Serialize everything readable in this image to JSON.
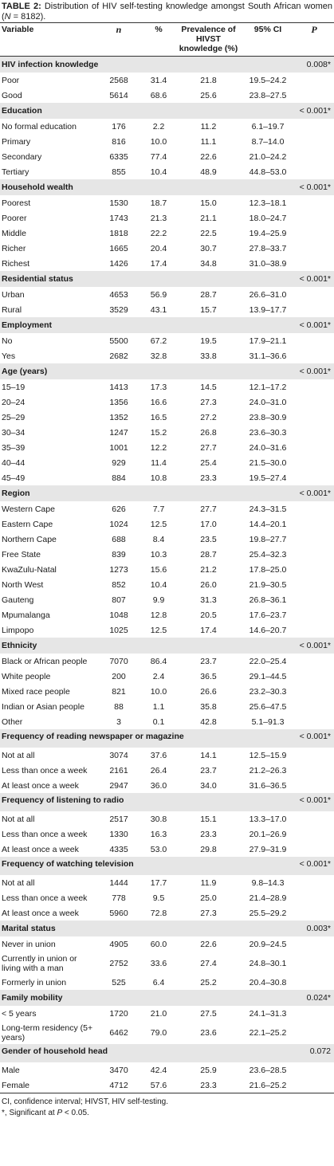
{
  "caption": {
    "label": "TABLE 2:",
    "text_before_n": "Distribution of HIV self-testing knowledge amongst South African women (",
    "n_symbol": "N",
    "text_after_n": " = 8182)."
  },
  "header": {
    "variable": "Variable",
    "n": "n",
    "percent": "%",
    "prevalence": "Prevalence of HIVST knowledge (%)",
    "ci": "95% CI",
    "p": "P"
  },
  "groups": [
    {
      "title": "HIV infection knowledge",
      "p": "0.008*",
      "rows": [
        [
          "Poor",
          "2568",
          "31.4",
          "21.8",
          "19.5–24.2"
        ],
        [
          "Good",
          "5614",
          "68.6",
          "25.6",
          "23.8–27.5"
        ]
      ]
    },
    {
      "title": "Education",
      "p": "< 0.001*",
      "rows": [
        [
          "No formal education",
          "176",
          "2.2",
          "11.2",
          "6.1–19.7"
        ],
        [
          "Primary",
          "816",
          "10.0",
          "11.1",
          "8.7–14.0"
        ],
        [
          "Secondary",
          "6335",
          "77.4",
          "22.6",
          "21.0–24.2"
        ],
        [
          "Tertiary",
          "855",
          "10.4",
          "48.9",
          "44.8–53.0"
        ]
      ]
    },
    {
      "title": "Household wealth",
      "p": "< 0.001*",
      "rows": [
        [
          "Poorest",
          "1530",
          "18.7",
          "15.0",
          "12.3–18.1"
        ],
        [
          "Poorer",
          "1743",
          "21.3",
          "21.1",
          "18.0–24.7"
        ],
        [
          "Middle",
          "1818",
          "22.2",
          "22.5",
          "19.4–25.9"
        ],
        [
          "Richer",
          "1665",
          "20.4",
          "30.7",
          "27.8–33.7"
        ],
        [
          "Richest",
          "1426",
          "17.4",
          "34.8",
          "31.0–38.9"
        ]
      ]
    },
    {
      "title": "Residential status",
      "p": "< 0.001*",
      "rows": [
        [
          "Urban",
          "4653",
          "56.9",
          "28.7",
          "26.6–31.0"
        ],
        [
          "Rural",
          "3529",
          "43.1",
          "15.7",
          "13.9–17.7"
        ]
      ]
    },
    {
      "title": "Employment",
      "p": "< 0.001*",
      "rows": [
        [
          "No",
          "5500",
          "67.2",
          "19.5",
          "17.9–21.1"
        ],
        [
          "Yes",
          "2682",
          "32.8",
          "33.8",
          "31.1–36.6"
        ]
      ]
    },
    {
      "title": "Age (years)",
      "p": "< 0.001*",
      "rows": [
        [
          "15–19",
          "1413",
          "17.3",
          "14.5",
          "12.1–17.2"
        ],
        [
          "20–24",
          "1356",
          "16.6",
          "27.3",
          "24.0–31.0"
        ],
        [
          "25–29",
          "1352",
          "16.5",
          "27.2",
          "23.8–30.9"
        ],
        [
          "30–34",
          "1247",
          "15.2",
          "26.8",
          "23.6–30.3"
        ],
        [
          "35–39",
          "1001",
          "12.2",
          "27.7",
          "24.0–31.6"
        ],
        [
          "40–44",
          "929",
          "11.4",
          "25.4",
          "21.5–30.0"
        ],
        [
          "45–49",
          "884",
          "10.8",
          "23.3",
          "19.5–27.4"
        ]
      ]
    },
    {
      "title": "Region",
      "p": "< 0.001*",
      "rows": [
        [
          "Western Cape",
          "626",
          "7.7",
          "27.7",
          "24.3–31.5"
        ],
        [
          "Eastern Cape",
          "1024",
          "12.5",
          "17.0",
          "14.4–20.1"
        ],
        [
          "Northern Cape",
          "688",
          "8.4",
          "23.5",
          "19.8–27.7"
        ],
        [
          "Free State",
          "839",
          "10.3",
          "28.7",
          "25.4–32.3"
        ],
        [
          "KwaZulu-Natal",
          "1273",
          "15.6",
          "21.2",
          "17.8–25.0"
        ],
        [
          "North West",
          "852",
          "10.4",
          "26.0",
          "21.9–30.5"
        ],
        [
          "Gauteng",
          "807",
          "9.9",
          "31.3",
          "26.8–36.1"
        ],
        [
          "Mpumalanga",
          "1048",
          "12.8",
          "20.5",
          "17.6–23.7"
        ],
        [
          "Limpopo",
          "1025",
          "12.5",
          "17.4",
          "14.6–20.7"
        ]
      ]
    },
    {
      "title": "Ethnicity",
      "p": "< 0.001*",
      "rows": [
        [
          "Black or African people",
          "7070",
          "86.4",
          "23.7",
          "22.0–25.4"
        ],
        [
          "White people",
          "200",
          "2.4",
          "36.5",
          "29.1–44.5"
        ],
        [
          "Mixed race people",
          "821",
          "10.0",
          "26.6",
          "23.2–30.3"
        ],
        [
          "Indian or Asian people",
          "88",
          "1.1",
          "35.8",
          "25.6–47.5"
        ],
        [
          "Other",
          "3",
          "0.1",
          "42.8",
          "5.1–91.3"
        ]
      ]
    },
    {
      "title": "Frequency of reading newspaper or magazine",
      "p": "< 0.001*",
      "tall": true,
      "rows": [
        [
          "Not at all",
          "3074",
          "37.6",
          "14.1",
          "12.5–15.9"
        ],
        [
          "Less than once a week",
          "2161",
          "26.4",
          "23.7",
          "21.2–26.3"
        ],
        [
          "At least once a week",
          "2947",
          "36.0",
          "34.0",
          "31.6–36.5"
        ]
      ]
    },
    {
      "title": "Frequency of listening to radio",
      "p": "< 0.001*",
      "tall": true,
      "rows": [
        [
          "Not at all",
          "2517",
          "30.8",
          "15.1",
          "13.3–17.0"
        ],
        [
          "Less than once a week",
          "1330",
          "16.3",
          "23.3",
          "20.1–26.9"
        ],
        [
          "At least once a week",
          "4335",
          "53.0",
          "29.8",
          "27.9–31.9"
        ]
      ]
    },
    {
      "title": "Frequency of watching television",
      "p": "< 0.001*",
      "tall": true,
      "rows": [
        [
          "Not at all",
          "1444",
          "17.7",
          "11.9",
          "9.8–14.3"
        ],
        [
          "Less than once a week",
          "778",
          "9.5",
          "25.0",
          "21.4–28.9"
        ],
        [
          "At least once a week",
          "5960",
          "72.8",
          "27.3",
          "25.5–29.2"
        ]
      ]
    },
    {
      "title": "Marital status",
      "p": "0.003*",
      "rows": [
        [
          "Never in union",
          "4905",
          "60.0",
          "22.6",
          "20.9–24.5"
        ],
        [
          "Currently in union or living with a man",
          "2752",
          "33.6",
          "27.4",
          "24.8–30.1"
        ],
        [
          "Formerly in union",
          "525",
          "6.4",
          "25.2",
          "20.4–30.8"
        ]
      ]
    },
    {
      "title": "Family mobility",
      "p": "0.024*",
      "rows": [
        [
          "< 5 years",
          "1720",
          "21.0",
          "27.5",
          "24.1–31.3"
        ],
        [
          "Long-term residency (5+ years)",
          "6462",
          "79.0",
          "23.6",
          "22.1–25.2"
        ]
      ]
    },
    {
      "title": "Gender of household head",
      "p": "0.072",
      "tall": true,
      "rows": [
        [
          "Male",
          "3470",
          "42.4",
          "25.9",
          "23.6–28.5"
        ],
        [
          "Female",
          "4712",
          "57.6",
          "23.3",
          "21.6–25.2"
        ]
      ]
    }
  ],
  "footnotes": {
    "abbrev": "CI, confidence interval; HIVST, HIV self-testing.",
    "star_prefix": "*, Significant at ",
    "star_symbol": "P",
    "star_suffix": " < 0.05."
  }
}
